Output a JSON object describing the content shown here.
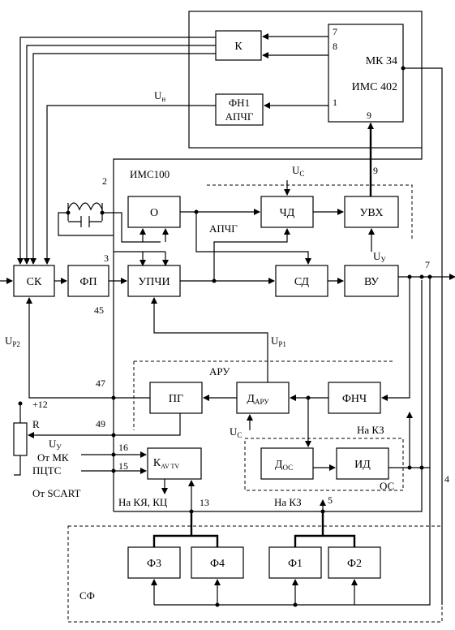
{
  "blocks": {
    "k": "К",
    "mk_title": "МК 34",
    "mk_ims": "ИМС 402",
    "fn1_line1": "ФН1",
    "fn1_line2": "АПЧГ",
    "o": "О",
    "chd": "ЧД",
    "uvx": "УВХ",
    "sk": "СК",
    "fp": "ФП",
    "upchi": "УПЧИ",
    "sd": "СД",
    "vu": "ВУ",
    "pg": "ПГ",
    "daru_main": "Д",
    "daru_sub": "АРУ",
    "fnch": "ФНЧ",
    "dos_main": "Д",
    "dos_sub": "ОС",
    "id": "ИД",
    "kav_main": "К",
    "kav_sub": "AV TV",
    "f1": "Ф1",
    "f2": "Ф2",
    "f3": "Ф3",
    "f4": "Ф4"
  },
  "labels": {
    "ims100": "ИМС100",
    "apchg": "АПЧГ",
    "aru": "АРУ",
    "os": "ОС",
    "sf": "СФ",
    "un_main": "U",
    "un_sub": "н",
    "uc_main": "U",
    "uc_sub": "С",
    "uy_main": "U",
    "uy_sub": "У",
    "urz_main": "U",
    "urz_sub": "Р2",
    "ur1_main": "U",
    "ur1_sub": "Р1",
    "uc2_main": "U",
    "uc2_sub": "С",
    "uy2_main": "U",
    "uy2_sub": "У",
    "plus12": "+12",
    "r": "R",
    "ot_mk": "От МК",
    "pcts": "ПЦТС",
    "ot_scart": "От  SCART",
    "na_kya_kc": "На КЯ, КЦ",
    "na_kz1": "На КЗ",
    "na_kz2": "На КЗ"
  },
  "pins": {
    "p7_mk": "7",
    "p8_mk": "8",
    "p1_mk": "1",
    "p9_mk": "9",
    "p9_line": "9",
    "p2": "2",
    "p3": "3",
    "p45": "45",
    "p47": "47",
    "p49": "49",
    "p16": "16",
    "p15": "15",
    "p13": "13",
    "p5": "5",
    "p7_right": "7",
    "p4": "4"
  }
}
